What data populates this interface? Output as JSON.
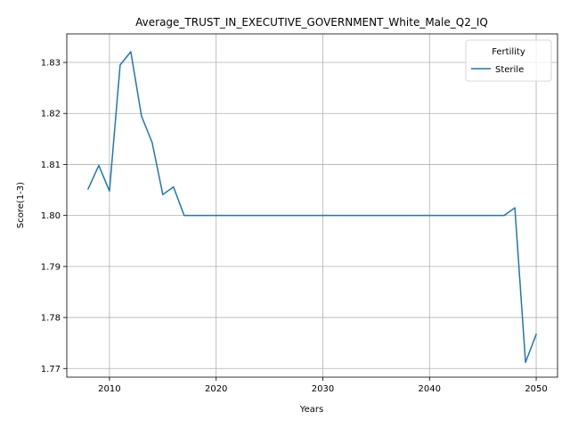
{
  "chart_data": {
    "type": "line",
    "title": "Average_TRUST_IN_EXECUTIVE_GOVERNMENT_White_Male_Q2_IQ",
    "xlabel": "Years",
    "ylabel": "Score(1-3)",
    "xlim": [
      2006,
      2052
    ],
    "ylim": [
      1.7683,
      1.8356
    ],
    "xticks": [
      2010,
      2020,
      2030,
      2040,
      2050
    ],
    "yticks": [
      1.77,
      1.78,
      1.79,
      1.8,
      1.81,
      1.82,
      1.83
    ],
    "ytick_labels": [
      "1.77",
      "1.78",
      "1.79",
      "1.80",
      "1.81",
      "1.82",
      "1.83"
    ],
    "grid": true,
    "legend": {
      "title": "Fertility",
      "placement": "top-right"
    },
    "series": [
      {
        "name": "Sterile",
        "color": "#1f77b4",
        "x": [
          2008,
          2009,
          2010,
          2011,
          2012,
          2013,
          2014,
          2015,
          2016,
          2017,
          2018,
          2019,
          2020,
          2021,
          2022,
          2023,
          2024,
          2025,
          2026,
          2027,
          2028,
          2029,
          2030,
          2031,
          2032,
          2033,
          2034,
          2035,
          2036,
          2037,
          2038,
          2039,
          2040,
          2041,
          2042,
          2043,
          2044,
          2045,
          2046,
          2047,
          2048,
          2049,
          2050
        ],
        "values": [
          1.8052,
          1.8098,
          1.8048,
          1.8295,
          1.8321,
          1.8195,
          1.8143,
          1.8041,
          1.8056,
          1.8,
          1.8,
          1.8,
          1.8,
          1.8,
          1.8,
          1.8,
          1.8,
          1.8,
          1.8,
          1.8,
          1.8,
          1.8,
          1.8,
          1.8,
          1.8,
          1.8,
          1.8,
          1.8,
          1.8,
          1.8,
          1.8,
          1.8,
          1.8,
          1.8,
          1.8,
          1.8,
          1.8,
          1.8,
          1.8,
          1.8,
          1.8015,
          1.7712,
          1.7767
        ]
      }
    ]
  }
}
